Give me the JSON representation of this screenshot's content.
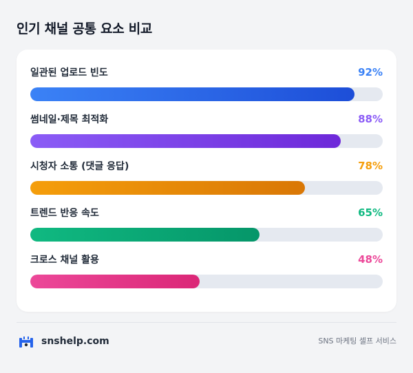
{
  "page": {
    "title": "인기 채널 공통 요소 비교"
  },
  "chart_data": {
    "type": "bar",
    "orientation": "horizontal",
    "title": "인기 채널 공통 요소 비교",
    "xlim": [
      0,
      100
    ],
    "grid": false,
    "categories": [
      "일관된 업로드 빈도",
      "썸네일·제목 최적화",
      "시청자 소통 (댓글 응답)",
      "트렌드 반응 속도",
      "크로스 채널 활용"
    ],
    "values": [
      92,
      88,
      78,
      65,
      48
    ],
    "value_labels": [
      "92%",
      "88%",
      "78%",
      "65%",
      "48%"
    ],
    "colors": [
      {
        "start": "#3b82f6",
        "end": "#1d4ed8",
        "text": "#3b82f6"
      },
      {
        "start": "#8b5cf6",
        "end": "#6d28d9",
        "text": "#8b5cf6"
      },
      {
        "start": "#f59e0b",
        "end": "#d97706",
        "text": "#f59e0b"
      },
      {
        "start": "#10b981",
        "end": "#059669",
        "text": "#10b981"
      },
      {
        "start": "#ec4899",
        "end": "#db2777",
        "text": "#ec4899"
      }
    ],
    "track_color": "#e5e9f0"
  },
  "footer": {
    "brand": "snshelp.com",
    "tagline": "SNS 마케팅 셀프 서비스",
    "logo_icon": "snshelp-logo-icon",
    "brand_color": "#2563eb"
  }
}
